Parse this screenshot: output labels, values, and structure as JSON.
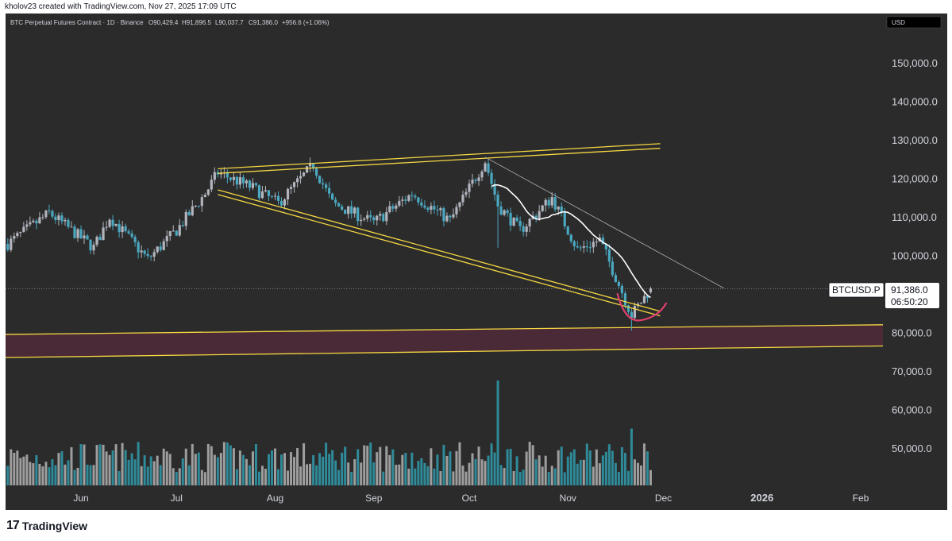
{
  "header": {
    "attribution": "kholov23 created with TradingView.com, Nov 27, 2025 17:09 UTC"
  },
  "legend": {
    "symbol": "BTC Perpetual Futures Contract · 1D · Binance",
    "open": "O90,429.4",
    "high": "H91,896.5",
    "low": "L90,037.7",
    "close": "C91,386.0",
    "change": "+956.6 (+1.06%)"
  },
  "currency_badge": "USD",
  "price_tag": {
    "symbol": "BTCUSD.P",
    "price": "91,386.0",
    "countdown": "06:50:20"
  },
  "footer": {
    "logo_mark": "17",
    "logo_text": "TradingView"
  },
  "colors": {
    "background": "#2b2b2b",
    "bull_candle": "#b2b5be",
    "bear_candle": "#4aa8c0",
    "bull_volume": "#9e9e9e",
    "bear_volume": "#2f8a99",
    "channel": "#f5d742",
    "zone_fill": "#4a2a36",
    "moving_average": "#ffffff",
    "trendline": "#b0b0b0",
    "cup_arc": "#e0406e",
    "axis_text": "#d1d4dc"
  },
  "chart_data": {
    "type": "candlestick",
    "title": "BTC Perpetual Futures Contract · 1D · Binance",
    "x_ticks": [
      "Jun",
      "Jul",
      "Aug",
      "Sep",
      "Oct",
      "Nov",
      "Dec",
      "2026",
      "Feb"
    ],
    "y_ticks": [
      "150,000.0",
      "140,000.0",
      "130,000.0",
      "120,000.0",
      "110,000.0",
      "100,000.0",
      "80,000.0",
      "70,000.0",
      "60,000.0",
      "50,000.0"
    ],
    "y_tick_values": [
      150000,
      140000,
      130000,
      120000,
      110000,
      100000,
      80000,
      70000,
      60000,
      50000
    ],
    "ylim": [
      41000,
      158000
    ],
    "last_price": 91386.0,
    "price_anchors": [
      {
        "date": "2025-05-09",
        "close": 103000
      },
      {
        "date": "2025-05-22",
        "close": 111000
      },
      {
        "date": "2025-06-05",
        "close": 102000
      },
      {
        "date": "2025-06-10",
        "close": 110000
      },
      {
        "date": "2025-06-22",
        "close": 99000
      },
      {
        "date": "2025-07-01",
        "close": 106500
      },
      {
        "date": "2025-07-10",
        "close": 116000
      },
      {
        "date": "2025-07-14",
        "close": 121500
      },
      {
        "date": "2025-07-25",
        "close": 117500
      },
      {
        "date": "2025-08-02",
        "close": 113500
      },
      {
        "date": "2025-08-13",
        "close": 123500
      },
      {
        "date": "2025-08-19",
        "close": 113500
      },
      {
        "date": "2025-09-01",
        "close": 108500
      },
      {
        "date": "2025-09-13",
        "close": 116000
      },
      {
        "date": "2025-09-25",
        "close": 109000
      },
      {
        "date": "2025-10-06",
        "close": 124500
      },
      {
        "date": "2025-10-10",
        "close": 113000
      },
      {
        "date": "2025-10-17",
        "close": 106500
      },
      {
        "date": "2025-10-27",
        "close": 115000
      },
      {
        "date": "2025-11-04",
        "close": 101500
      },
      {
        "date": "2025-11-11",
        "close": 104000
      },
      {
        "date": "2025-11-17",
        "close": 92500
      },
      {
        "date": "2025-11-21",
        "close": 84500
      },
      {
        "date": "2025-11-27",
        "close": 91386
      }
    ],
    "overlays": {
      "channel_upper": [
        {
          "date": "2025-07-14",
          "price": 122500
        },
        {
          "date": "2025-11-30",
          "price": 129000
        }
      ],
      "channel_lower": [
        {
          "date": "2025-07-14",
          "price": 117000
        },
        {
          "date": "2025-11-30",
          "price": 85500
        }
      ],
      "support_zone_top": [
        {
          "date": "2025-04-30",
          "price": 79500
        },
        {
          "date": "2026-03-05",
          "price": 82000
        }
      ],
      "support_zone_bottom": [
        {
          "date": "2025-04-30",
          "price": 73500
        },
        {
          "date": "2026-03-05",
          "price": 76500
        }
      ],
      "trendline": [
        {
          "date": "2025-10-06",
          "price": 125500
        },
        {
          "date": "2025-12-20",
          "price": 91500
        }
      ],
      "cup_bottom": {
        "date": "2025-11-22",
        "price": 84000
      }
    }
  }
}
